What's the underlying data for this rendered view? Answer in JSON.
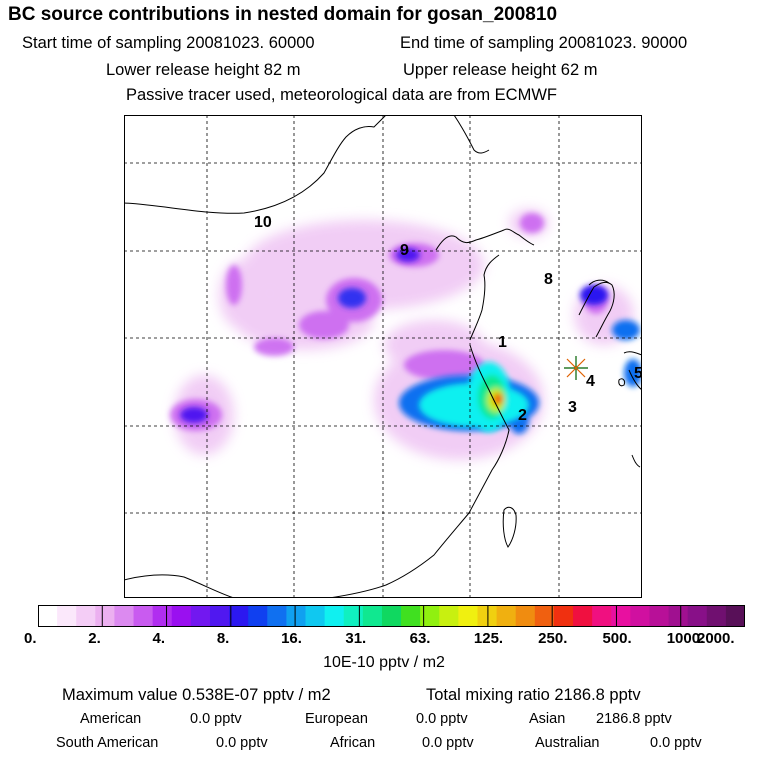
{
  "header": {
    "title": "BC  source contributions in nested domain for gosan_200810",
    "start_label": "Start time of sampling 20081023. 60000",
    "end_label": "End time of sampling 20081023. 90000",
    "lower_label": "Lower release height   82 m",
    "upper_label": "Upper release height   62 m",
    "tracer_note": "Passive tracer used, meteorological data are from ECMWF"
  },
  "map": {
    "region_labels": [
      "1",
      "2",
      "3",
      "4",
      "5",
      "8",
      "9",
      "10"
    ],
    "receptor_marker": "star-burst-icon"
  },
  "colorbar": {
    "colors": [
      "#ffffff",
      "#fbe8fb",
      "#f4cdf6",
      "#ecb0f0",
      "#dc8af0",
      "#c95bf0",
      "#b12ef0",
      "#9a10f0",
      "#7218f0",
      "#5018f0",
      "#2c18f0",
      "#1040f0",
      "#1070f0",
      "#10a0f0",
      "#10c8f0",
      "#10f0f0",
      "#10f0c0",
      "#10e890",
      "#10d860",
      "#40e020",
      "#90f010",
      "#c8f010",
      "#f0f010",
      "#f0d010",
      "#f0b010",
      "#f08c10",
      "#f06010",
      "#f03010",
      "#f01040",
      "#f01080",
      "#e810a0",
      "#d010a0",
      "#b81098",
      "#a01090",
      "#881088",
      "#701070",
      "#581058"
    ],
    "tick_labels": [
      "0.",
      "2.",
      "4.",
      "8.",
      "16.",
      "31.",
      "63.",
      "125.",
      "250.",
      "500.",
      "1000.",
      "2000."
    ],
    "unit": "10E-10 pptv / m2"
  },
  "stats": {
    "max_text": "Maximum value  0.538E-07 pptv / m2",
    "total_text": "Total mixing ratio     2186.8 pptv",
    "american_label": "American",
    "american_value": "0.0 pptv",
    "european_label": "European",
    "european_value": "0.0 pptv",
    "asian_label": "Asian",
    "asian_value": "2186.8 pptv",
    "south_american_label": "South American",
    "south_american_value": "0.0 pptv",
    "african_label": "African",
    "african_value": "0.0 pptv",
    "australian_label": "Australian",
    "australian_value": "0.0 pptv"
  }
}
